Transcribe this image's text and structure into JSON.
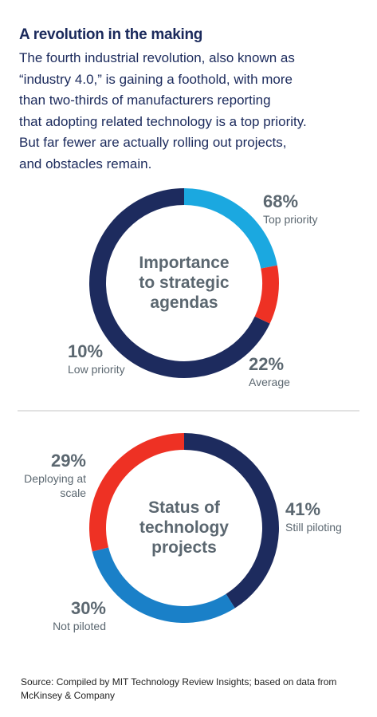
{
  "title": "A revolution in the making",
  "intro": [
    "The fourth industrial revolution, also known as",
    "“industry 4.0,” is gaining a foothold, with more",
    "than two-thirds of manufacturers reporting",
    "that adopting related technology is a top priority.",
    "But far fewer are actually rolling out projects,",
    "and obstacles remain."
  ],
  "chart_data": [
    {
      "type": "donut",
      "center_label": [
        "Importance",
        "to strategic",
        "agendas"
      ],
      "categories": [
        "Top priority",
        "Average",
        "Low priority"
      ],
      "values": [
        68,
        22,
        10
      ],
      "value_labels": [
        "68%",
        "22%",
        "10%"
      ],
      "colors": [
        "#1d2b5e",
        "#1ba8e0",
        "#ee3124"
      ]
    },
    {
      "type": "donut",
      "center_label": [
        "Status of",
        "technology",
        "projects"
      ],
      "categories": [
        "Still piloting",
        "Not piloted",
        "Deploying at scale"
      ],
      "values": [
        41,
        30,
        29
      ],
      "value_labels": [
        "41%",
        "30%",
        "29%"
      ],
      "colors": [
        "#1d2b5e",
        "#1a80c8",
        "#ee3124"
      ]
    }
  ],
  "source": "Source: Compiled by MIT Technology Review Insights; based on data from McKinsey & Company"
}
